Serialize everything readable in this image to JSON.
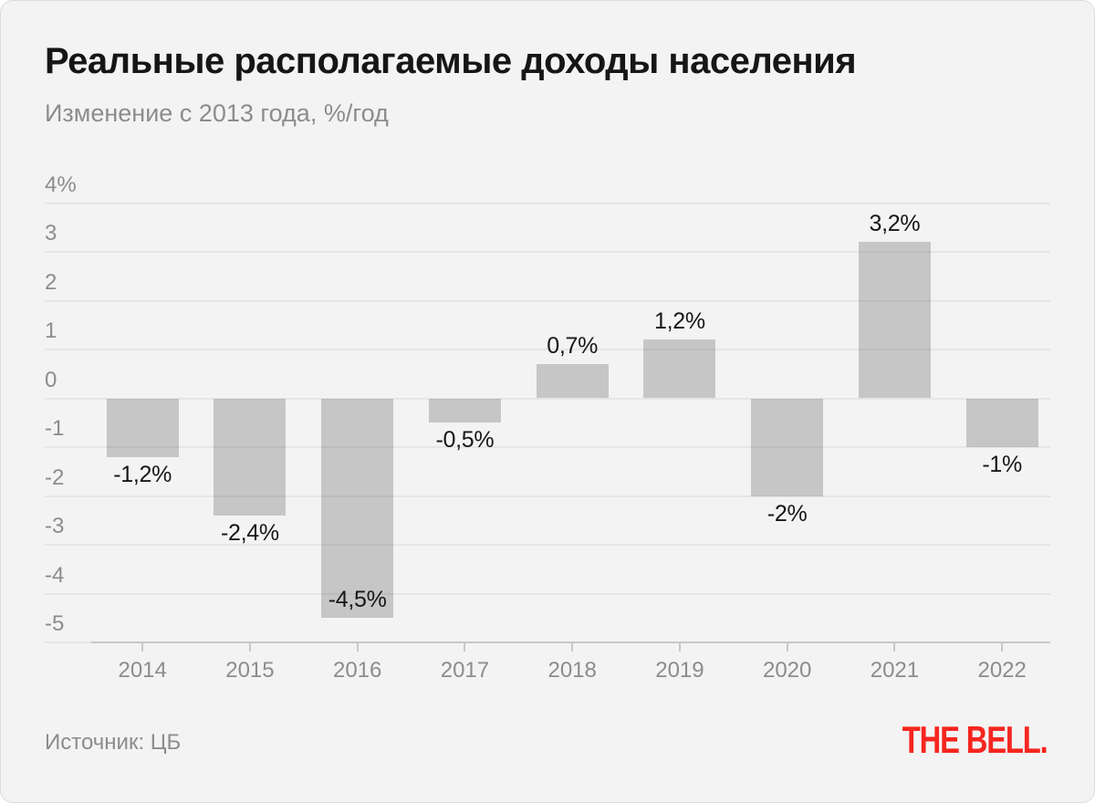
{
  "header": {
    "title": "Реальные располагаемые доходы населения",
    "subtitle": "Изменение с 2013 года, %/год"
  },
  "footer": {
    "source": "Источник: ЦБ",
    "logo": "THE BELL."
  },
  "colors": {
    "background": "#f3f3f3",
    "bar": "#c6c6c6",
    "grid": "#e3e3e3",
    "axis": "#c8c8c8",
    "ink": "#161616",
    "muted": "#8c8c8c",
    "logo_red": "#f5261f"
  },
  "chart_data": {
    "type": "bar",
    "title": "Реальные располагаемые доходы населения",
    "subtitle": "Изменение с 2013 года, %/год",
    "xlabel": "",
    "ylabel": "%/год",
    "categories": [
      "2014",
      "2015",
      "2016",
      "2017",
      "2018",
      "2019",
      "2020",
      "2021",
      "2022"
    ],
    "values": [
      -1.2,
      -2.4,
      -4.5,
      -0.5,
      0.7,
      1.2,
      -2,
      3.2,
      -1
    ],
    "value_labels": [
      "-1,2%",
      "-2,4%",
      "-4,5%",
      "-0,5%",
      "0,7%",
      "1,2%",
      "-2%",
      "3,2%",
      "-1%"
    ],
    "ylim": [
      -5,
      4
    ],
    "y_ticks": [
      {
        "value": 4,
        "label": "4%"
      },
      {
        "value": 3,
        "label": "3"
      },
      {
        "value": 2,
        "label": "2"
      },
      {
        "value": 1,
        "label": "1"
      },
      {
        "value": 0,
        "label": "0"
      },
      {
        "value": -1,
        "label": "-1"
      },
      {
        "value": -2,
        "label": "-2"
      },
      {
        "value": -3,
        "label": "-3"
      },
      {
        "value": -4,
        "label": "-4"
      },
      {
        "value": -5,
        "label": "-5"
      }
    ],
    "grid": true,
    "legend": false,
    "source": "Источник: ЦБ"
  }
}
